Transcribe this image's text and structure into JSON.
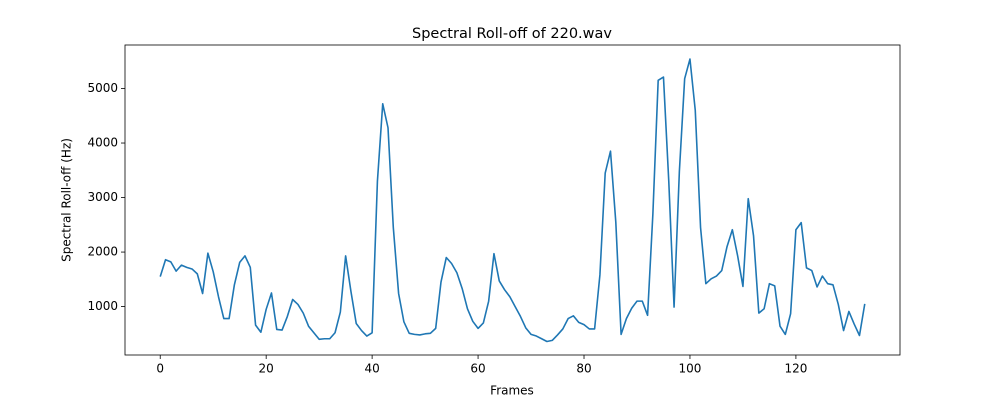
{
  "chart_data": {
    "type": "line",
    "title": "Spectral Roll-off of 220.wav",
    "x_label": "Frames",
    "y_label": "Spectral Roll-off (Hz)",
    "color": "#1f77b4",
    "x": [
      0,
      1,
      2,
      3,
      4,
      5,
      6,
      7,
      8,
      9,
      10,
      11,
      12,
      13,
      14,
      15,
      16,
      17,
      18,
      19,
      20,
      21,
      22,
      23,
      24,
      25,
      26,
      27,
      28,
      29,
      30,
      31,
      32,
      33,
      34,
      35,
      36,
      37,
      38,
      39,
      40,
      41,
      42,
      43,
      44,
      45,
      46,
      47,
      48,
      49,
      50,
      51,
      52,
      53,
      54,
      55,
      56,
      57,
      58,
      59,
      60,
      61,
      62,
      63,
      64,
      65,
      66,
      67,
      68,
      69,
      70,
      71,
      72,
      73,
      74,
      75,
      76,
      77,
      78,
      79,
      80,
      81,
      82,
      83,
      84,
      85,
      86,
      87,
      88,
      89,
      90,
      91,
      92,
      93,
      94,
      95,
      96,
      97,
      98,
      99,
      100,
      101,
      102,
      103,
      104,
      105,
      106,
      107,
      108,
      109,
      110,
      111,
      112,
      113,
      114,
      115,
      116,
      117,
      118,
      119,
      120,
      121,
      122,
      123,
      124,
      125,
      126,
      127,
      128,
      129,
      130,
      131,
      132,
      133
    ],
    "values": [
      1550,
      1860,
      1820,
      1650,
      1760,
      1720,
      1690,
      1600,
      1240,
      1980,
      1640,
      1180,
      780,
      780,
      1400,
      1810,
      1930,
      1720,
      660,
      530,
      950,
      1250,
      580,
      570,
      820,
      1130,
      1040,
      880,
      640,
      520,
      400,
      410,
      410,
      520,
      900,
      1930,
      1280,
      690,
      560,
      460,
      520,
      3300,
      4720,
      4280,
      2450,
      1240,
      720,
      510,
      490,
      480,
      500,
      510,
      600,
      1450,
      1900,
      1790,
      1620,
      1330,
      960,
      730,
      600,
      700,
      1100,
      1970,
      1470,
      1310,
      1180,
      1000,
      820,
      610,
      490,
      460,
      410,
      360,
      380,
      480,
      590,
      780,
      830,
      710,
      670,
      590,
      590,
      1580,
      3450,
      3850,
      2550,
      490,
      780,
      970,
      1100,
      1100,
      840,
      2700,
      5150,
      5210,
      3300,
      990,
      3480,
      5180,
      5540,
      4600,
      2450,
      1420,
      1510,
      1560,
      1660,
      2100,
      2410,
      1930,
      1370,
      2980,
      2300,
      880,
      960,
      1420,
      1380,
      640,
      490,
      870,
      2410,
      2540,
      1710,
      1660,
      1360,
      1560,
      1420,
      1400,
      1040,
      560,
      910,
      680,
      470,
      1050
    ],
    "xlim": [
      -6.65,
      139.65
    ],
    "ylim": [
      112,
      5798
    ],
    "xticks": [
      0,
      20,
      40,
      60,
      80,
      100,
      120
    ],
    "yticks": [
      1000,
      2000,
      3000,
      4000,
      5000
    ]
  }
}
